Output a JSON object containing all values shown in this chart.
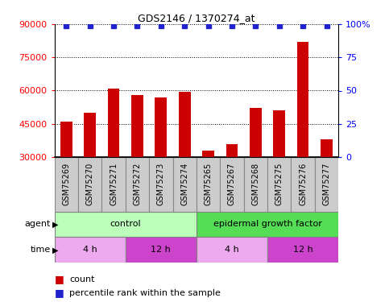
{
  "title": "GDS2146 / 1370274_at",
  "samples": [
    "GSM75269",
    "GSM75270",
    "GSM75271",
    "GSM75272",
    "GSM75273",
    "GSM75274",
    "GSM75265",
    "GSM75267",
    "GSM75268",
    "GSM75275",
    "GSM75276",
    "GSM75277"
  ],
  "counts": [
    46000,
    50000,
    61000,
    58000,
    57000,
    59500,
    33000,
    36000,
    52000,
    51000,
    82000,
    38000
  ],
  "percentiles": [
    99,
    99,
    99,
    99,
    99,
    99,
    99,
    99,
    99,
    99,
    99,
    99
  ],
  "bar_color": "#cc0000",
  "dot_color": "#2222cc",
  "ylim_left": [
    30000,
    90000
  ],
  "ylim_right": [
    0,
    100
  ],
  "yticks_left": [
    30000,
    45000,
    60000,
    75000,
    90000
  ],
  "yticks_right": [
    0,
    25,
    50,
    75,
    100
  ],
  "agent_labels": [
    {
      "label": "control",
      "start": 0,
      "end": 6,
      "color": "#bbffbb"
    },
    {
      "label": "epidermal growth factor",
      "start": 6,
      "end": 12,
      "color": "#55dd55"
    }
  ],
  "time_labels": [
    {
      "label": "4 h",
      "start": 0,
      "end": 3,
      "color": "#eeaaee"
    },
    {
      "label": "12 h",
      "start": 3,
      "end": 6,
      "color": "#cc44cc"
    },
    {
      "label": "4 h",
      "start": 6,
      "end": 9,
      "color": "#eeaaee"
    },
    {
      "label": "12 h",
      "start": 9,
      "end": 12,
      "color": "#cc44cc"
    }
  ],
  "legend_count_color": "#cc0000",
  "legend_pct_color": "#2222cc",
  "xlabel_agent": "agent",
  "xlabel_time": "time",
  "bar_width": 0.5,
  "sample_box_color": "#cccccc",
  "sample_box_edge": "#888888"
}
